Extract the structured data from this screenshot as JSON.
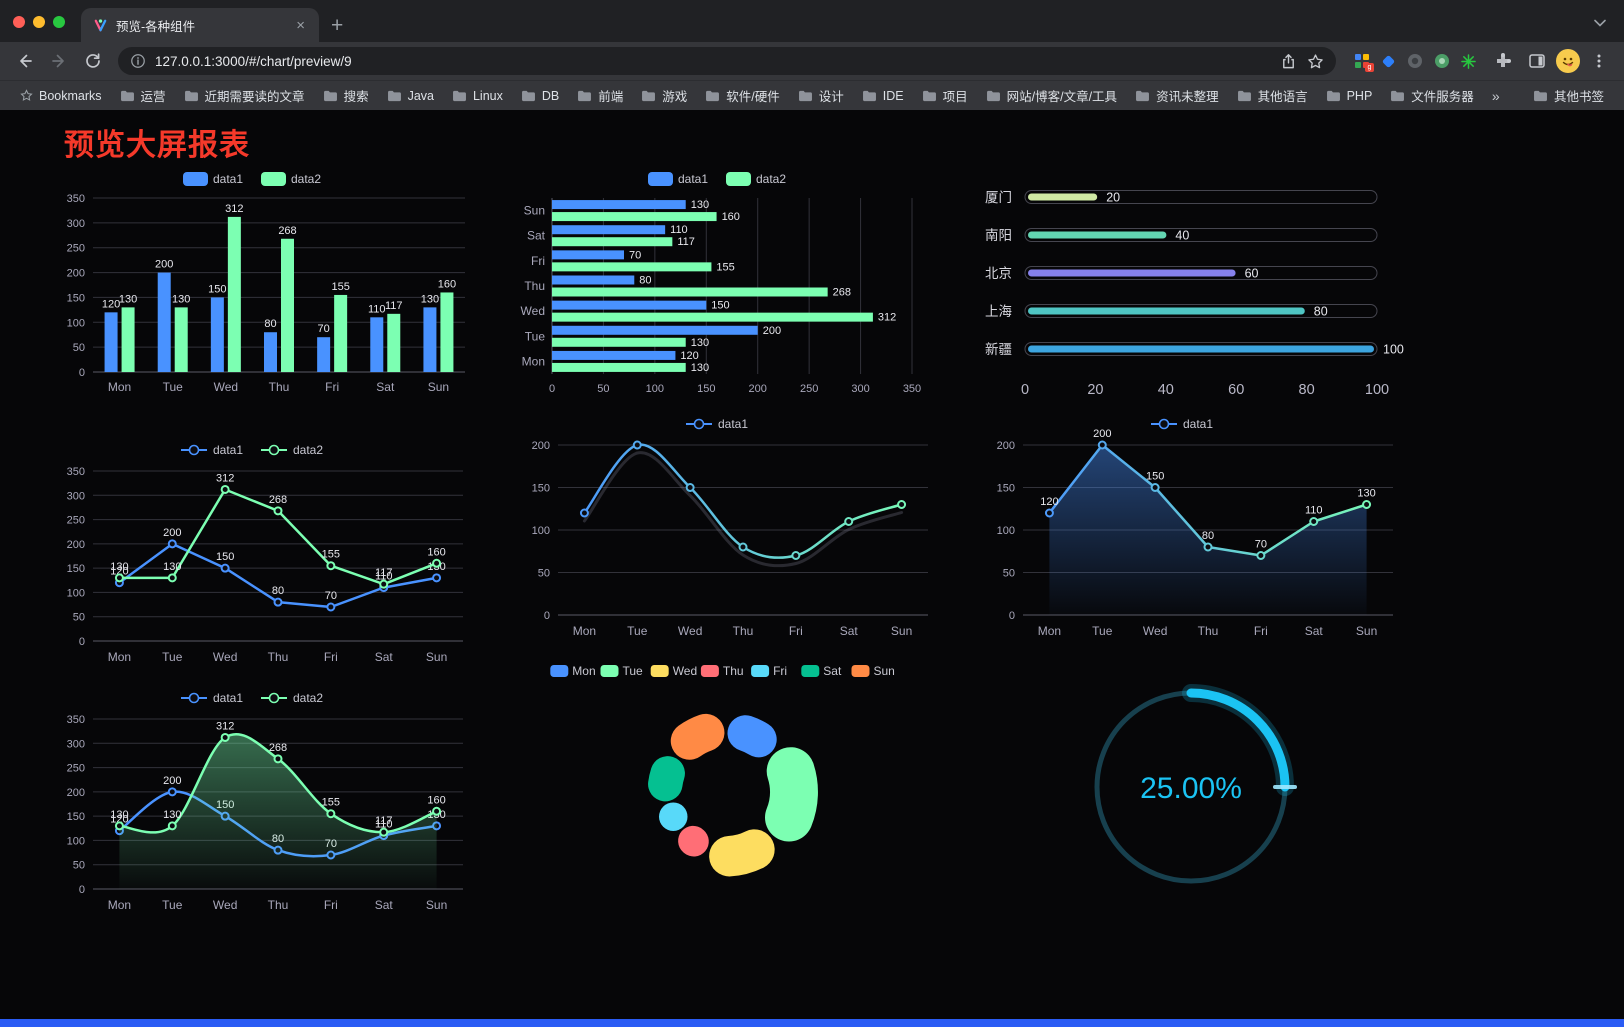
{
  "browser": {
    "tab": {
      "title": "预览-各种组件",
      "close_glyph": "×",
      "new_tab_glyph": "+"
    },
    "url": "127.0.0.1:3000/#/chart/preview/9",
    "bookmarks_bar": {
      "first": "Bookmarks",
      "folders": [
        "运营",
        "近期需要读的文章",
        "搜索",
        "Java",
        "Linux",
        "DB",
        "前端",
        "游戏",
        "软件/硬件",
        "设计",
        "IDE",
        "项目",
        "网站/博客/文章/工具",
        "资讯未整理",
        "其他语言",
        "PHP",
        "文件服务器"
      ],
      "overflow": "»",
      "other": "其他书签"
    }
  },
  "page": {
    "heading": "预览大屏报表",
    "heading_color": "#f5392a",
    "background": "#060608",
    "footer_bar_color": "#2a5cf4"
  },
  "style": {
    "grid_line": "#32323a",
    "axis_line": "#5b5b66",
    "tick_text": "#a9a8bb",
    "value_label": "#e8e8ee",
    "legend_text": "#c8c8d2"
  },
  "chart_data": [
    {
      "id": "grouped-bar",
      "type": "bar",
      "categories": [
        "Mon",
        "Tue",
        "Wed",
        "Thu",
        "Fri",
        "Sat",
        "Sun"
      ],
      "series": [
        {
          "name": "data1",
          "color": "#4992ff",
          "values": [
            120,
            200,
            150,
            80,
            70,
            110,
            130
          ]
        },
        {
          "name": "data2",
          "color": "#7cffb2",
          "values": [
            130,
            130,
            312,
            268,
            155,
            117,
            160
          ]
        }
      ],
      "ylim": [
        0,
        350
      ],
      "ytick_step": 50,
      "legend_position": "top",
      "grid": true
    },
    {
      "id": "horizontal-bar",
      "type": "bar-horizontal",
      "categories": [
        "Mon",
        "Tue",
        "Wed",
        "Thu",
        "Fri",
        "Sat",
        "Sun"
      ],
      "series": [
        {
          "name": "data1",
          "color": "#4992ff",
          "values": [
            120,
            200,
            150,
            80,
            70,
            110,
            130
          ]
        },
        {
          "name": "data2",
          "color": "#7cffb2",
          "values": [
            130,
            130,
            312,
            268,
            155,
            117,
            160
          ]
        }
      ],
      "xlim": [
        0,
        350
      ],
      "xtick_step": 50,
      "legend_position": "top",
      "grid": true
    },
    {
      "id": "capsule-progress",
      "type": "capsule",
      "categories": [
        "厦门",
        "南阳",
        "北京",
        "上海",
        "新疆"
      ],
      "values": [
        20,
        40,
        60,
        80,
        100
      ],
      "colors": [
        "#cfe9a3",
        "#63d5b2",
        "#8681ec",
        "#4fc5c4",
        "#3da5e0"
      ],
      "xlim": [
        0,
        100
      ],
      "xticks": [
        0,
        20,
        40,
        60,
        80,
        100
      ]
    },
    {
      "id": "multi-line",
      "type": "line",
      "categories": [
        "Mon",
        "Tue",
        "Wed",
        "Thu",
        "Fri",
        "Sat",
        "Sun"
      ],
      "series": [
        {
          "name": "data1",
          "color": "#4992ff",
          "values": [
            120,
            200,
            150,
            80,
            70,
            110,
            130
          ]
        },
        {
          "name": "data2",
          "color": "#7cffb2",
          "values": [
            130,
            130,
            312,
            268,
            155,
            117,
            160
          ]
        }
      ],
      "ylim": [
        0,
        350
      ],
      "ytick_step": 50,
      "labels": true,
      "smooth": false,
      "legend_position": "top"
    },
    {
      "id": "smooth-gradient-line",
      "type": "line",
      "categories": [
        "Mon",
        "Tue",
        "Wed",
        "Thu",
        "Fri",
        "Sat",
        "Sun"
      ],
      "series": [
        {
          "name": "data1",
          "color": [
            "#4992ff",
            "#7cffb2"
          ],
          "values": [
            120,
            200,
            150,
            80,
            70,
            110,
            130
          ]
        }
      ],
      "ylim": [
        0,
        200
      ],
      "ytick_step": 50,
      "labels": false,
      "smooth": true,
      "shadow": true,
      "legend_position": "top"
    },
    {
      "id": "gradient-area-line",
      "type": "line",
      "categories": [
        "Mon",
        "Tue",
        "Wed",
        "Thu",
        "Fri",
        "Sat",
        "Sun"
      ],
      "series": [
        {
          "name": "data1",
          "color": [
            "#4992ff",
            "#7cffb2"
          ],
          "values": [
            120,
            200,
            150,
            80,
            70,
            110,
            130
          ],
          "area": "#4992ff"
        }
      ],
      "ylim": [
        0,
        200
      ],
      "ytick_step": 50,
      "labels": true,
      "smooth": false,
      "legend_position": "top"
    },
    {
      "id": "line-with-green-area",
      "type": "line",
      "categories": [
        "Mon",
        "Tue",
        "Wed",
        "Thu",
        "Fri",
        "Sat",
        "Sun"
      ],
      "series": [
        {
          "name": "data1",
          "color": "#4992ff",
          "values": [
            120,
            200,
            150,
            80,
            70,
            110,
            130
          ]
        },
        {
          "name": "data2",
          "color": "#7cffb2",
          "values": [
            130,
            130,
            312,
            268,
            155,
            117,
            160
          ],
          "area": "#7cffb2"
        }
      ],
      "ylim": [
        0,
        350
      ],
      "ytick_step": 50,
      "labels": true,
      "smooth": true,
      "legend_position": "top"
    },
    {
      "id": "rose-donut",
      "type": "pie",
      "categories": [
        "Mon",
        "Tue",
        "Wed",
        "Thu",
        "Fri",
        "Sat",
        "Sun"
      ],
      "values": [
        120,
        200,
        150,
        80,
        70,
        110,
        130
      ],
      "colors": [
        "#4992ff",
        "#7cffb2",
        "#fddd60",
        "#ff6e76",
        "#58d9f9",
        "#05c091",
        "#ff8a45"
      ],
      "rose": true,
      "donut": true,
      "legend_position": "top"
    },
    {
      "id": "progress-gauge",
      "type": "gauge",
      "value": 25,
      "label": "25.00%",
      "color": "#1bc3f3",
      "track_color": "#17404e"
    }
  ]
}
